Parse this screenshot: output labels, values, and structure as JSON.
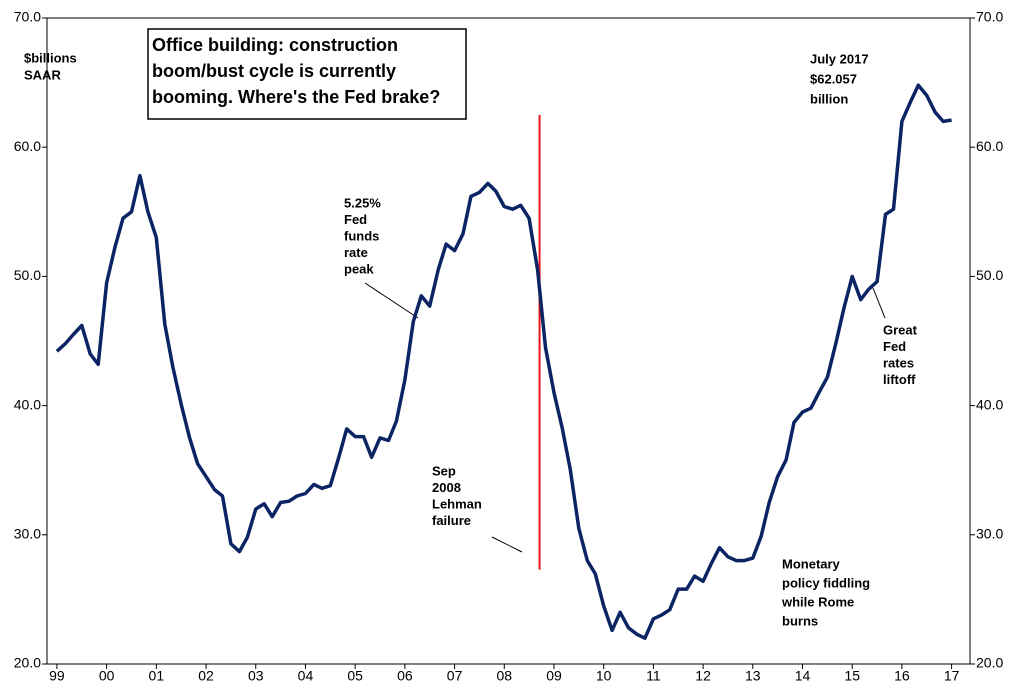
{
  "chart_data": {
    "type": "line",
    "title": [
      "Office building: construction",
      "boom/bust cycle is currently",
      "booming. Where's the Fed brake?"
    ],
    "y_axis_label": [
      "$billions",
      "SAAR"
    ],
    "annotations": {
      "latest": [
        "July 2017",
        "$62.057",
        "billion"
      ],
      "fed_peak": [
        "5.25%",
        "Fed",
        "funds",
        "rate",
        "peak"
      ],
      "lehman": [
        "Sep",
        "2008",
        "Lehman",
        "failure"
      ],
      "liftoff": [
        "Great",
        "Fed",
        "rates",
        "liftoff"
      ],
      "rome": [
        "Monetary",
        "policy fiddling",
        "while Rome",
        "burns"
      ]
    },
    "lehman_marker": {
      "x": 2008.71,
      "y_range": [
        27.3,
        62.5
      ],
      "color": "#e8141b"
    },
    "x": [
      1999,
      1999.17,
      1999.33,
      1999.5,
      1999.67,
      1999.83,
      2000,
      2000.17,
      2000.33,
      2000.5,
      2000.67,
      2000.83,
      2001,
      2001.17,
      2001.33,
      2001.5,
      2001.67,
      2001.83,
      2002,
      2002.17,
      2002.33,
      2002.5,
      2002.67,
      2002.83,
      2003,
      2003.17,
      2003.33,
      2003.5,
      2003.67,
      2003.83,
      2004,
      2004.17,
      2004.33,
      2004.5,
      2004.67,
      2004.83,
      2005,
      2005.17,
      2005.33,
      2005.5,
      2005.67,
      2005.83,
      2006,
      2006.17,
      2006.33,
      2006.5,
      2006.67,
      2006.83,
      2007,
      2007.17,
      2007.33,
      2007.5,
      2007.67,
      2007.83,
      2008,
      2008.17,
      2008.33,
      2008.5,
      2008.67,
      2008.83,
      2009,
      2009.17,
      2009.33,
      2009.5,
      2009.67,
      2009.83,
      2010,
      2010.17,
      2010.33,
      2010.5,
      2010.67,
      2010.83,
      2011,
      2011.17,
      2011.33,
      2011.5,
      2011.67,
      2011.83,
      2012,
      2012.17,
      2012.33,
      2012.5,
      2012.67,
      2012.83,
      2013,
      2013.17,
      2013.33,
      2013.5,
      2013.67,
      2013.83,
      2014,
      2014.17,
      2014.33,
      2014.5,
      2014.67,
      2014.83,
      2015,
      2015.17,
      2015.33,
      2015.5,
      2015.67,
      2015.83,
      2016,
      2016.17,
      2016.33,
      2016.5,
      2016.67,
      2016.83,
      2017
    ],
    "series": [
      {
        "color": "#0b2463",
        "values": [
          44.2,
          44.8,
          45.5,
          46.2,
          44.0,
          43.2,
          49.5,
          52.3,
          54.5,
          55.0,
          57.8,
          55.0,
          53.0,
          46.3,
          43.0,
          40.1,
          37.5,
          35.5,
          34.5,
          33.5,
          33.0,
          29.3,
          28.7,
          29.8,
          32.0,
          32.4,
          31.4,
          32.5,
          32.6,
          33.0,
          33.2,
          33.9,
          33.6,
          33.8,
          36.0,
          38.2,
          37.6,
          37.6,
          36.0,
          37.5,
          37.3,
          38.8,
          42.0,
          46.5,
          48.5,
          47.7,
          50.5,
          52.5,
          52.0,
          53.3,
          56.2,
          56.5,
          57.2,
          56.6,
          55.4,
          55.2,
          55.5,
          54.5,
          50.5,
          44.5,
          41.0,
          38.2,
          35.0,
          30.5,
          28.0,
          27.0,
          24.5,
          22.6,
          24.0,
          22.8,
          22.3,
          22.0,
          23.5,
          23.8,
          24.2,
          25.8,
          25.8,
          26.8,
          26.4,
          27.8,
          29.0,
          28.3,
          28.0,
          28.0,
          28.2,
          29.9,
          32.5,
          34.5,
          35.8,
          38.7,
          39.5,
          39.8,
          41.0,
          42.2,
          44.8,
          47.5,
          50.0,
          48.2,
          49.0,
          49.6,
          54.8,
          55.2,
          62.0,
          63.5,
          64.8,
          64.0,
          62.7,
          62.0,
          62.1
        ]
      }
    ],
    "xlim": [
      1998.8,
      2017.37
    ],
    "xticks": [
      {
        "value": 1999,
        "label": "99"
      },
      {
        "value": 2000,
        "label": "00"
      },
      {
        "value": 2001,
        "label": "01"
      },
      {
        "value": 2002,
        "label": "02"
      },
      {
        "value": 2003,
        "label": "03"
      },
      {
        "value": 2004,
        "label": "04"
      },
      {
        "value": 2005,
        "label": "05"
      },
      {
        "value": 2006,
        "label": "06"
      },
      {
        "value": 2007,
        "label": "07"
      },
      {
        "value": 2008,
        "label": "08"
      },
      {
        "value": 2009,
        "label": "09"
      },
      {
        "value": 2010,
        "label": "10"
      },
      {
        "value": 2011,
        "label": "11"
      },
      {
        "value": 2012,
        "label": "12"
      },
      {
        "value": 2013,
        "label": "13"
      },
      {
        "value": 2014,
        "label": "14"
      },
      {
        "value": 2015,
        "label": "15"
      },
      {
        "value": 2016,
        "label": "16"
      },
      {
        "value": 2017,
        "label": "17"
      }
    ],
    "ylim": [
      20,
      70
    ],
    "yticks": [
      {
        "value": 20,
        "label": "20.0"
      },
      {
        "value": 30,
        "label": "30.0"
      },
      {
        "value": 40,
        "label": "40.0"
      },
      {
        "value": 50,
        "label": "50.0"
      },
      {
        "value": 60,
        "label": "60.0"
      },
      {
        "value": 70,
        "label": "70.0"
      }
    ],
    "y2lim": [
      20,
      70
    ],
    "y2ticks": [
      {
        "value": 20,
        "label": "20.0"
      },
      {
        "value": 30,
        "label": "30.0"
      },
      {
        "value": 40,
        "label": "40.0"
      },
      {
        "value": 50,
        "label": "50.0"
      },
      {
        "value": 60,
        "label": "60.0"
      },
      {
        "value": 70,
        "label": "70.0"
      }
    ]
  }
}
